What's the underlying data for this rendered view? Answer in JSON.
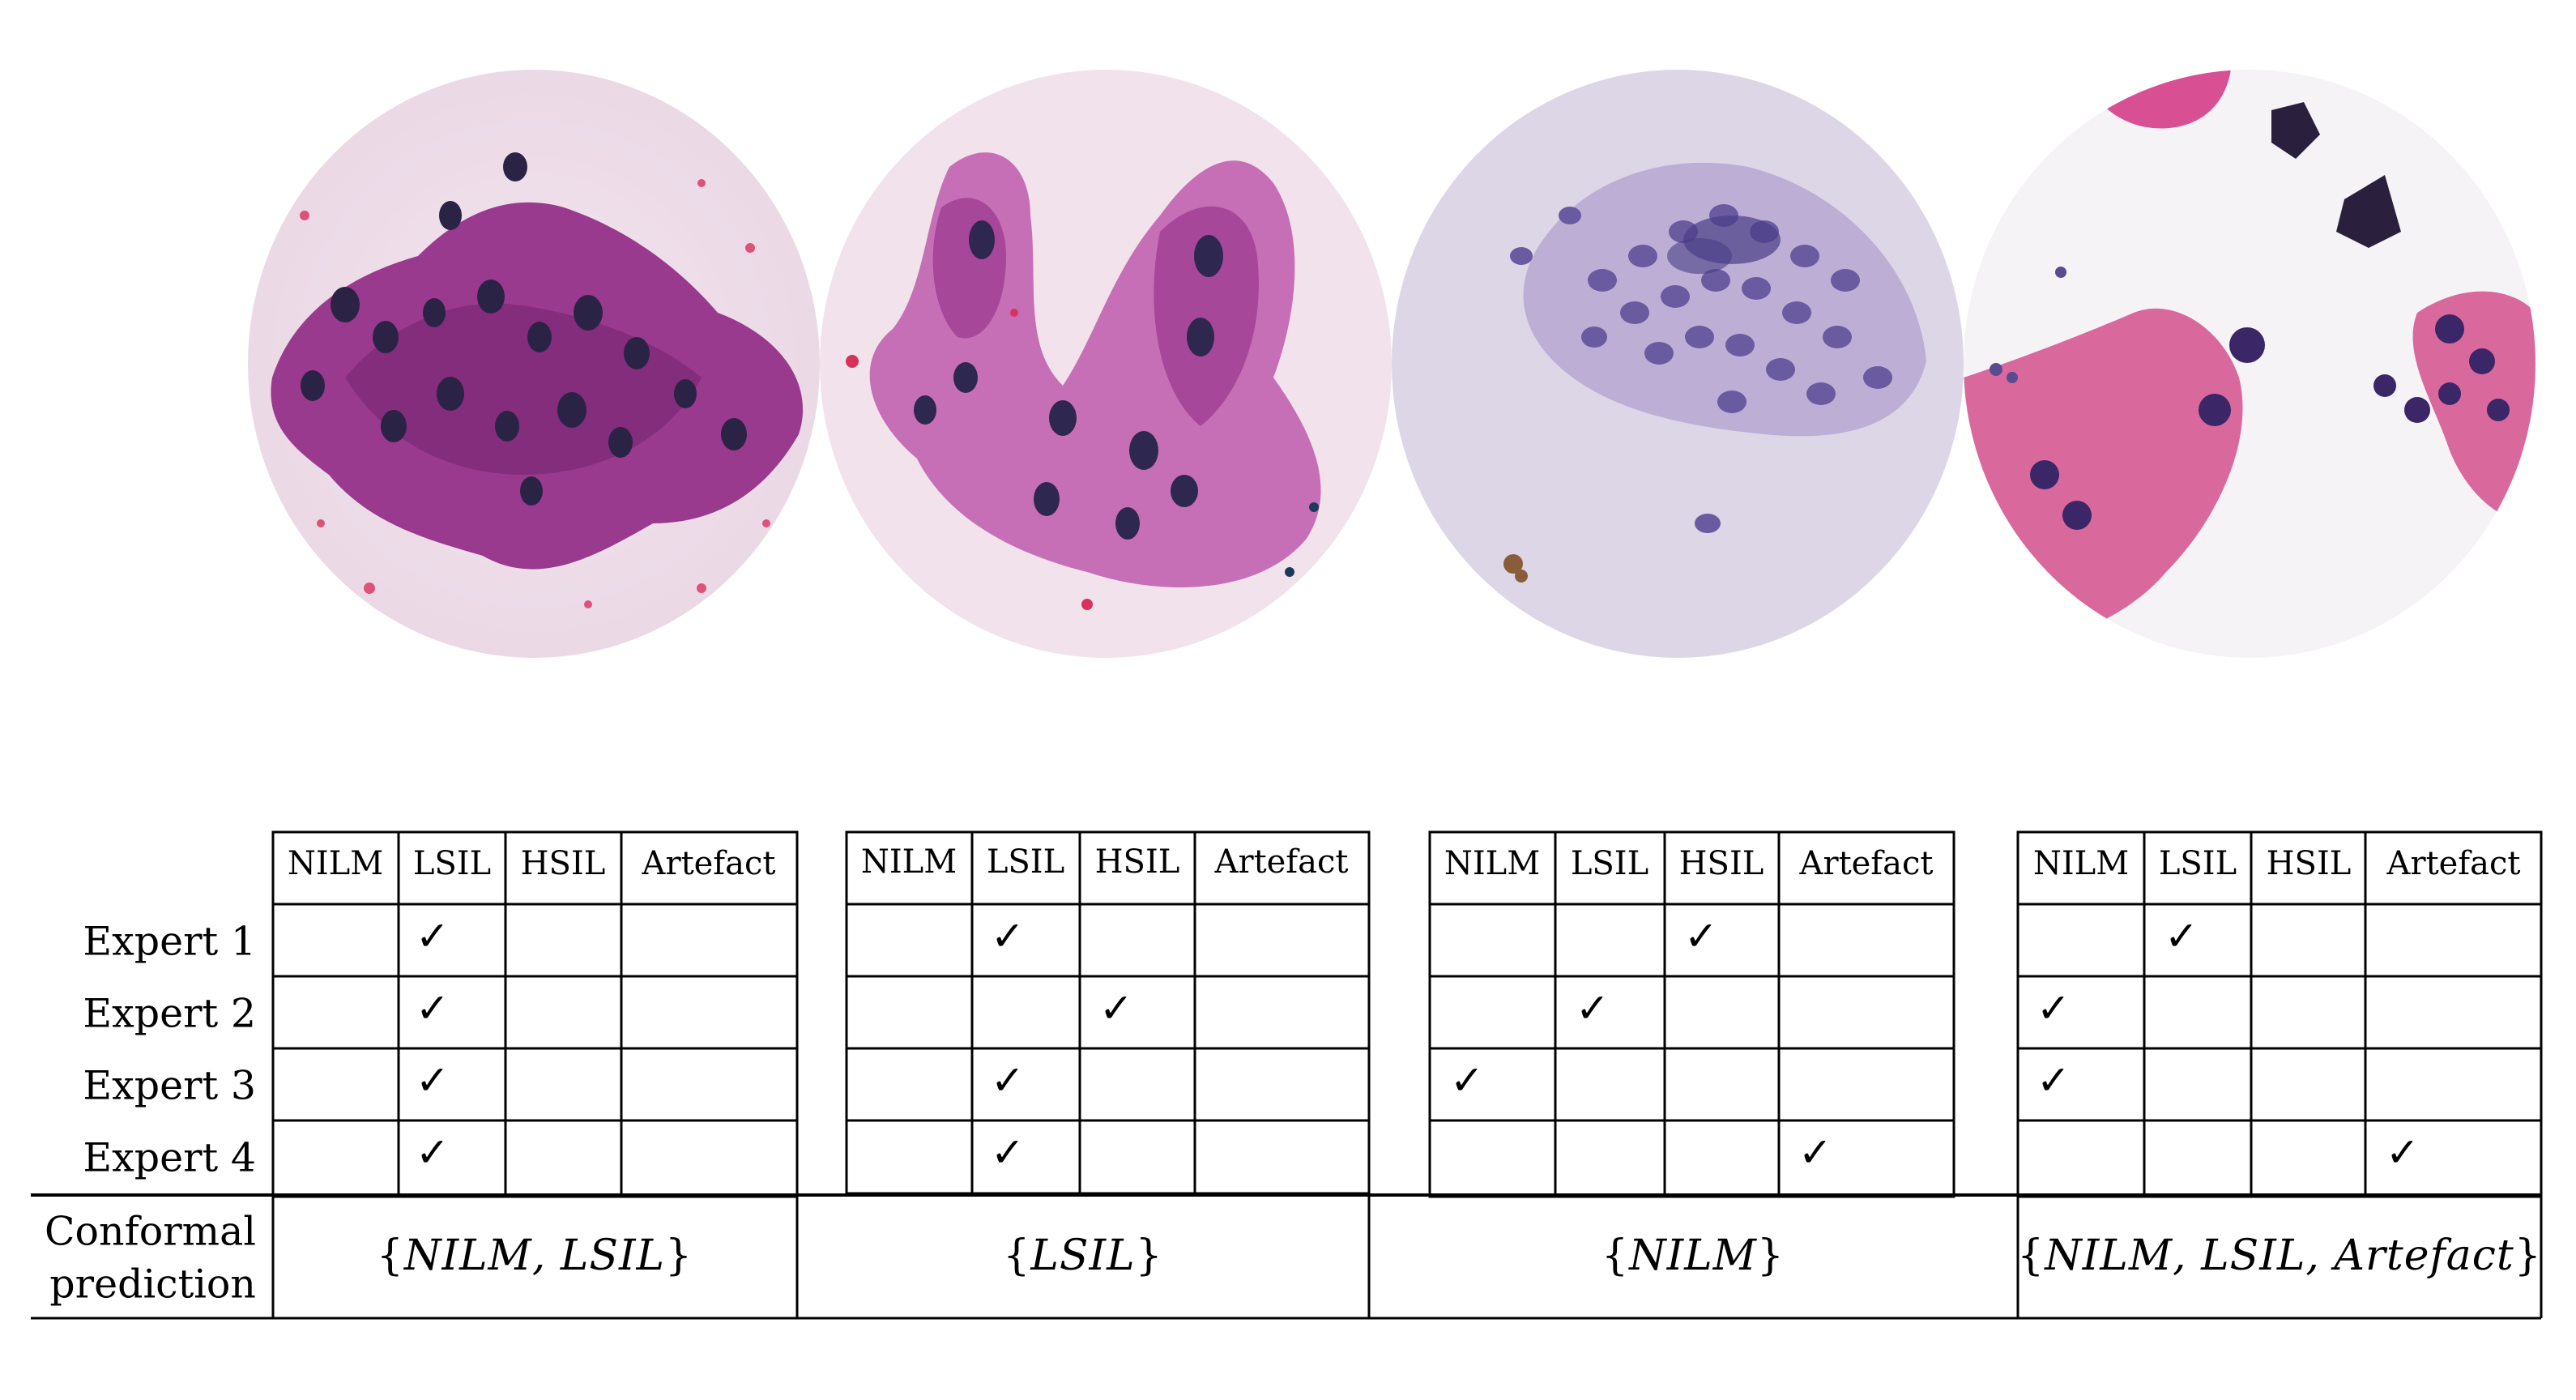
{
  "columns": [
    "NILM",
    "LSIL",
    "HSIL",
    "Artefact"
  ],
  "rows": [
    "Expert 1",
    "Expert 2",
    "Expert 3",
    "Expert 4"
  ],
  "last_row": {
    "line1": "Conformal",
    "line2": "prediction"
  },
  "check_mark": "✓",
  "cases": [
    {
      "image": "cytology-image-1",
      "votes": [
        "LSIL",
        "LSIL",
        "LSIL",
        "LSIL"
      ],
      "conformal_set": {
        "open": "{",
        "text": "NILM, LSIL",
        "close": "}"
      }
    },
    {
      "image": "cytology-image-2",
      "votes": [
        "LSIL",
        "HSIL",
        "LSIL",
        "LSIL"
      ],
      "conformal_set": {
        "open": "{",
        "text": "LSIL",
        "close": "}"
      }
    },
    {
      "image": "cytology-image-3",
      "votes": [
        "HSIL",
        "LSIL",
        "NILM",
        "Artefact"
      ],
      "conformal_set": {
        "open": "{",
        "text": "NILM",
        "close": "}"
      }
    },
    {
      "image": "cytology-image-4",
      "votes": [
        "LSIL",
        "NILM",
        "NILM",
        "Artefact"
      ],
      "conformal_set": {
        "open": "{",
        "text": "NILM, LSIL, Artefact",
        "close": "}"
      }
    }
  ]
}
